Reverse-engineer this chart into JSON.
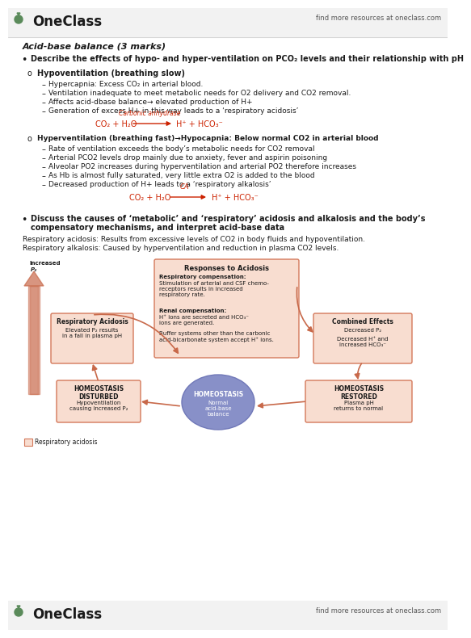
{
  "bg_color": "#ffffff",
  "oneclass_green": "#5a8a5a",
  "text_color": "#1a1a1a",
  "gray_text": "#555555",
  "red_color": "#cc2200",
  "salmon_border": "#d4785a",
  "light_salmon": "#f8ddd0",
  "arrow_color": "#c8694a",
  "blue_ellipse": "#8890c8",
  "title": "Acid-base balance (3 marks)",
  "bullet1": "Describe the effects of hypo- and hyper-ventilation on PCO₂ levels and their relationship with pH",
  "hypo_title": "Hypoventilation (breathing slow)",
  "hypo_bullets": [
    "Hypercapnia: Excess CO₂ in arterial blood.",
    "Ventilation inadequate to meet metabolic needs for O2 delivery and CO2 removal.",
    "Affects acid-dbase balance→ elevated production of H+",
    "Generation of excess H+ in this way leads to a ‘respiratory acidosis’"
  ],
  "hyper_title": "Hyperventilation (breathing fast)→Hypocapnia: Below normal CO2 in arterial blood",
  "hyper_bullets": [
    "Rate of ventilation exceeds the body’s metabolic needs for CO2 removal",
    "Arterial PCO2 levels drop mainly due to anxiety, fever and aspirin poisoning",
    "Alveolar PO2 increases during hyperventilation and arterial PO2 therefore increases",
    "As Hb is almost fully saturated, very little extra O2 is added to the blood",
    "Decreased production of H+ leads to a ‘respiratory alkalosis’"
  ],
  "bullet2_line1": "Discuss the causes of ‘metabolic’ and ‘respiratory’ acidosis and alkalosis and the body’s",
  "bullet2_line2": "compensatory mechanisms, and interpret acid-base data",
  "resp_acid_text": "Respiratory acidosis: Results from excessive levels of CO2 in body fluids and hypoventilation.",
  "resp_alk_text": "Respiratory alkalosis: Caused by hyperventilation and reduction in plasma CO2 levels."
}
